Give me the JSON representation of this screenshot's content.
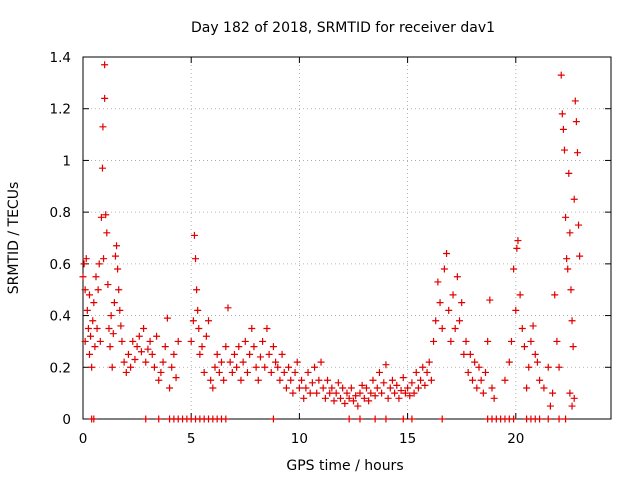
{
  "chart_data": {
    "type": "scatter",
    "title": "Day 182 of 2018, SRMTID for receiver dav1",
    "xlabel": "GPS time / hours",
    "ylabel": "SRMTID / TECUs",
    "xlim": [
      0,
      24.4
    ],
    "ylim": [
      0,
      1.4
    ],
    "xticks": [
      0,
      5,
      10,
      15,
      20
    ],
    "yticks": [
      0,
      0.2,
      0.4,
      0.6,
      0.8,
      1,
      1.2,
      1.4
    ],
    "grid": true,
    "marker": "+",
    "marker_color": "#e00000",
    "series": [
      {
        "name": "SRMTID",
        "points": [
          [
            0.0,
            0.55
          ],
          [
            0.05,
            0.6
          ],
          [
            0.1,
            0.5
          ],
          [
            0.1,
            0.3
          ],
          [
            0.15,
            0.62
          ],
          [
            0.2,
            0.42
          ],
          [
            0.25,
            0.35
          ],
          [
            0.3,
            0.25
          ],
          [
            0.3,
            0.48
          ],
          [
            0.35,
            0.32
          ],
          [
            0.4,
            0.2
          ],
          [
            0.45,
            0.38
          ],
          [
            0.5,
            0.45
          ],
          [
            0.55,
            0.28
          ],
          [
            0.6,
            0.55
          ],
          [
            0.65,
            0.35
          ],
          [
            0.7,
            0.5
          ],
          [
            0.75,
            0.6
          ],
          [
            0.8,
            0.3
          ],
          [
            0.85,
            0.78
          ],
          [
            0.9,
            0.97
          ],
          [
            0.92,
            1.13
          ],
          [
            0.95,
            0.62
          ],
          [
            1.0,
            1.37
          ],
          [
            1.0,
            1.24
          ],
          [
            1.05,
            0.79
          ],
          [
            1.1,
            0.72
          ],
          [
            1.15,
            0.52
          ],
          [
            1.2,
            0.35
          ],
          [
            1.25,
            0.28
          ],
          [
            1.3,
            0.4
          ],
          [
            1.35,
            0.2
          ],
          [
            1.4,
            0.33
          ],
          [
            1.45,
            0.45
          ],
          [
            1.5,
            0.63
          ],
          [
            1.55,
            0.67
          ],
          [
            1.6,
            0.58
          ],
          [
            1.65,
            0.5
          ],
          [
            1.7,
            0.42
          ],
          [
            1.75,
            0.36
          ],
          [
            1.8,
            0.3
          ],
          [
            1.9,
            0.22
          ],
          [
            2.0,
            0.18
          ],
          [
            2.1,
            0.25
          ],
          [
            2.2,
            0.2
          ],
          [
            2.3,
            0.3
          ],
          [
            2.4,
            0.23
          ],
          [
            2.5,
            0.28
          ],
          [
            2.6,
            0.32
          ],
          [
            2.7,
            0.26
          ],
          [
            2.8,
            0.35
          ],
          [
            2.9,
            0.22
          ],
          [
            3.0,
            0.27
          ],
          [
            3.1,
            0.3
          ],
          [
            3.2,
            0.25
          ],
          [
            3.3,
            0.2
          ],
          [
            3.4,
            0.32
          ],
          [
            3.5,
            0.15
          ],
          [
            3.6,
            0.18
          ],
          [
            3.7,
            0.22
          ],
          [
            3.8,
            0.28
          ],
          [
            3.9,
            0.39
          ],
          [
            4.0,
            0.12
          ],
          [
            4.1,
            0.2
          ],
          [
            4.2,
            0.25
          ],
          [
            4.3,
            0.16
          ],
          [
            4.4,
            0.3
          ],
          [
            5.0,
            0.3
          ],
          [
            5.1,
            0.38
          ],
          [
            5.15,
            0.71
          ],
          [
            5.2,
            0.62
          ],
          [
            5.25,
            0.5
          ],
          [
            5.3,
            0.42
          ],
          [
            5.35,
            0.35
          ],
          [
            5.4,
            0.25
          ],
          [
            5.5,
            0.28
          ],
          [
            5.6,
            0.18
          ],
          [
            5.7,
            0.32
          ],
          [
            5.8,
            0.38
          ],
          [
            5.9,
            0.15
          ],
          [
            6.0,
            0.12
          ],
          [
            6.1,
            0.2
          ],
          [
            6.2,
            0.25
          ],
          [
            6.3,
            0.18
          ],
          [
            6.4,
            0.22
          ],
          [
            6.5,
            0.15
          ],
          [
            6.6,
            0.28
          ],
          [
            6.7,
            0.43
          ],
          [
            6.8,
            0.22
          ],
          [
            6.9,
            0.18
          ],
          [
            7.0,
            0.25
          ],
          [
            7.1,
            0.2
          ],
          [
            7.2,
            0.28
          ],
          [
            7.3,
            0.15
          ],
          [
            7.4,
            0.22
          ],
          [
            7.5,
            0.3
          ],
          [
            7.6,
            0.18
          ],
          [
            7.7,
            0.25
          ],
          [
            7.8,
            0.35
          ],
          [
            7.9,
            0.28
          ],
          [
            8.0,
            0.2
          ],
          [
            8.1,
            0.15
          ],
          [
            8.2,
            0.24
          ],
          [
            8.3,
            0.3
          ],
          [
            8.4,
            0.2
          ],
          [
            8.5,
            0.35
          ],
          [
            8.6,
            0.25
          ],
          [
            8.7,
            0.18
          ],
          [
            8.8,
            0.28
          ],
          [
            8.9,
            0.22
          ],
          [
            9.0,
            0.2
          ],
          [
            9.1,
            0.15
          ],
          [
            9.2,
            0.25
          ],
          [
            9.3,
            0.18
          ],
          [
            9.4,
            0.12
          ],
          [
            9.5,
            0.2
          ],
          [
            9.6,
            0.15
          ],
          [
            9.7,
            0.1
          ],
          [
            9.8,
            0.18
          ],
          [
            9.9,
            0.22
          ],
          [
            10.0,
            0.12
          ],
          [
            10.1,
            0.15
          ],
          [
            10.2,
            0.08
          ],
          [
            10.3,
            0.12
          ],
          [
            10.4,
            0.18
          ],
          [
            10.5,
            0.1
          ],
          [
            10.6,
            0.14
          ],
          [
            10.7,
            0.2
          ],
          [
            10.8,
            0.1
          ],
          [
            10.9,
            0.15
          ],
          [
            11.0,
            0.22
          ],
          [
            11.1,
            0.12
          ],
          [
            11.2,
            0.08
          ],
          [
            11.3,
            0.15
          ],
          [
            11.4,
            0.1
          ],
          [
            11.5,
            0.12
          ],
          [
            11.6,
            0.07
          ],
          [
            11.7,
            0.1
          ],
          [
            11.8,
            0.14
          ],
          [
            11.9,
            0.08
          ],
          [
            12.0,
            0.12
          ],
          [
            12.1,
            0.06
          ],
          [
            12.2,
            0.1
          ],
          [
            12.3,
            0.08
          ],
          [
            12.4,
            0.12
          ],
          [
            12.5,
            0.07
          ],
          [
            12.6,
            0.09
          ],
          [
            12.7,
            0.05
          ],
          [
            12.8,
            0.1
          ],
          [
            12.9,
            0.13
          ],
          [
            13.0,
            0.08
          ],
          [
            13.1,
            0.12
          ],
          [
            13.2,
            0.07
          ],
          [
            13.3,
            0.1
          ],
          [
            13.4,
            0.15
          ],
          [
            13.5,
            0.09
          ],
          [
            13.6,
            0.12
          ],
          [
            13.7,
            0.18
          ],
          [
            13.8,
            0.1
          ],
          [
            13.9,
            0.14
          ],
          [
            14.0,
            0.21
          ],
          [
            14.1,
            0.08
          ],
          [
            14.2,
            0.12
          ],
          [
            14.3,
            0.15
          ],
          [
            14.4,
            0.1
          ],
          [
            14.5,
            0.13
          ],
          [
            14.6,
            0.08
          ],
          [
            14.7,
            0.11
          ],
          [
            14.8,
            0.16
          ],
          [
            14.9,
            0.1
          ],
          [
            15.0,
            0.12
          ],
          [
            15.1,
            0.09
          ],
          [
            15.2,
            0.14
          ],
          [
            15.3,
            0.1
          ],
          [
            15.4,
            0.18
          ],
          [
            15.5,
            0.12
          ],
          [
            15.6,
            0.15
          ],
          [
            15.7,
            0.2
          ],
          [
            15.8,
            0.13
          ],
          [
            15.9,
            0.18
          ],
          [
            16.0,
            0.22
          ],
          [
            16.1,
            0.15
          ],
          [
            16.2,
            0.3
          ],
          [
            16.3,
            0.38
          ],
          [
            16.4,
            0.53
          ],
          [
            16.5,
            0.45
          ],
          [
            16.6,
            0.35
          ],
          [
            16.7,
            0.58
          ],
          [
            16.8,
            0.64
          ],
          [
            16.9,
            0.42
          ],
          [
            17.0,
            0.3
          ],
          [
            17.1,
            0.48
          ],
          [
            17.2,
            0.35
          ],
          [
            17.3,
            0.55
          ],
          [
            17.4,
            0.38
          ],
          [
            17.5,
            0.45
          ],
          [
            17.6,
            0.25
          ],
          [
            17.7,
            0.3
          ],
          [
            17.8,
            0.18
          ],
          [
            17.9,
            0.25
          ],
          [
            18.0,
            0.15
          ],
          [
            18.1,
            0.22
          ],
          [
            18.2,
            0.12
          ],
          [
            18.3,
            0.2
          ],
          [
            18.4,
            0.15
          ],
          [
            18.5,
            0.1
          ],
          [
            18.6,
            0.18
          ],
          [
            18.7,
            0.3
          ],
          [
            18.8,
            0.46
          ],
          [
            18.9,
            0.12
          ],
          [
            19.0,
            0.08
          ],
          [
            19.5,
            0.15
          ],
          [
            19.7,
            0.22
          ],
          [
            19.8,
            0.3
          ],
          [
            19.9,
            0.58
          ],
          [
            20.0,
            0.42
          ],
          [
            20.05,
            0.66
          ],
          [
            20.1,
            0.69
          ],
          [
            20.2,
            0.48
          ],
          [
            20.3,
            0.35
          ],
          [
            20.4,
            0.28
          ],
          [
            20.5,
            0.12
          ],
          [
            20.6,
            0.2
          ],
          [
            20.7,
            0.3
          ],
          [
            20.8,
            0.36
          ],
          [
            20.9,
            0.25
          ],
          [
            21.0,
            0.22
          ],
          [
            21.1,
            0.15
          ],
          [
            21.3,
            0.12
          ],
          [
            21.5,
            0.2
          ],
          [
            21.6,
            0.05
          ],
          [
            21.7,
            0.1
          ],
          [
            21.8,
            0.48
          ],
          [
            21.9,
            0.3
          ],
          [
            22.0,
            0.2
          ],
          [
            22.1,
            1.33
          ],
          [
            22.15,
            1.18
          ],
          [
            22.2,
            1.12
          ],
          [
            22.25,
            1.04
          ],
          [
            22.3,
            0.78
          ],
          [
            22.35,
            0.62
          ],
          [
            22.4,
            0.58
          ],
          [
            22.45,
            0.95
          ],
          [
            22.5,
            0.72
          ],
          [
            22.55,
            0.5
          ],
          [
            22.6,
            0.38
          ],
          [
            22.65,
            0.28
          ],
          [
            22.7,
            0.85
          ],
          [
            22.75,
            1.23
          ],
          [
            22.8,
            1.15
          ],
          [
            22.85,
            1.03
          ],
          [
            22.9,
            0.75
          ],
          [
            22.95,
            0.63
          ],
          [
            22.5,
            0.1
          ],
          [
            22.6,
            0.05
          ],
          [
            22.7,
            0.08
          ]
        ],
        "zero_points": [
          0.4,
          0.5,
          2.9,
          3.5,
          4.0,
          4.2,
          4.4,
          4.6,
          4.8,
          5.0,
          5.2,
          5.4,
          5.6,
          5.8,
          6.0,
          6.2,
          6.4,
          6.6,
          8.8,
          12.3,
          12.8,
          13.5,
          14.0,
          14.8,
          15.2,
          16.6,
          18.7,
          18.9,
          19.1,
          19.3,
          19.5,
          19.7,
          19.9,
          20.5,
          20.7,
          20.9,
          21.1,
          21.5,
          22.0,
          22.3
        ]
      }
    ]
  }
}
